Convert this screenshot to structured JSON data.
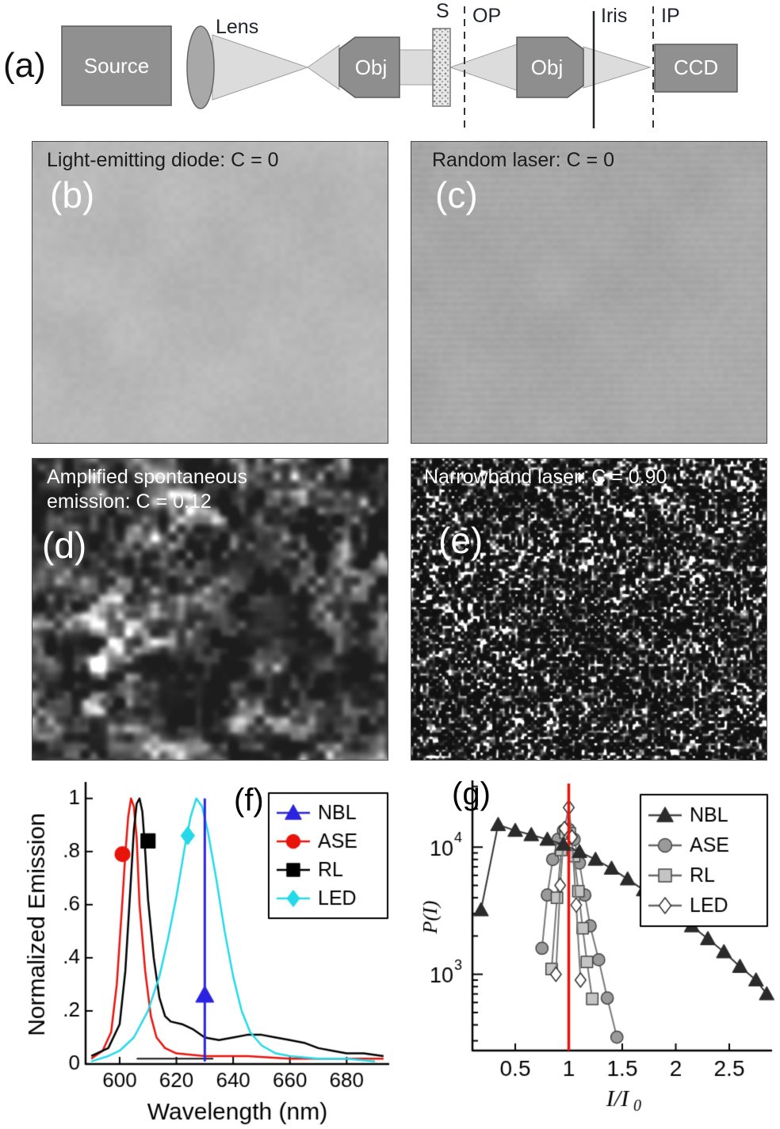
{
  "figure": {
    "panel_a": {
      "label": "(a)",
      "components": {
        "source": "Source",
        "lens": "Lens",
        "obj1": "Obj",
        "sample": "S",
        "op": "OP",
        "obj2": "Obj",
        "iris": "Iris",
        "ip": "IP",
        "ccd": "CCD"
      }
    },
    "panel_b": {
      "label": "(b)",
      "caption": "Light-emitting diode: C = 0"
    },
    "panel_c": {
      "label": "(c)",
      "caption": "Random laser: C = 0"
    },
    "panel_d": {
      "label": "(d)",
      "caption": "Amplified spontaneous emission: C = 0.12"
    },
    "panel_e": {
      "label": "(e)",
      "caption": "Narrowband laser: C = 0.90"
    },
    "panel_f": {
      "label": "(f)"
    },
    "panel_g": {
      "label": "(g)"
    }
  },
  "chart_data": [
    {
      "id": "f",
      "type": "line",
      "xlabel": "Wavelength (nm)",
      "ylabel": "Normalized Emission",
      "xlim": [
        588,
        695
      ],
      "ylim": [
        0,
        1.05
      ],
      "xticks": [
        600,
        620,
        640,
        660,
        680
      ],
      "yticks": [
        0,
        0.2,
        0.4,
        0.6,
        0.8,
        1
      ],
      "ytick_labels": [
        "0",
        ".2",
        ".4",
        ".6",
        ".8",
        "1"
      ],
      "legend": [
        {
          "name": "NBL",
          "marker": "triangle",
          "color": "#2a24e0"
        },
        {
          "name": "ASE",
          "marker": "circle",
          "color": "#e8140c"
        },
        {
          "name": "RL",
          "marker": "square",
          "color": "#000000"
        },
        {
          "name": "LED",
          "marker": "diamond",
          "color": "#25d9e9"
        }
      ],
      "baseline_segment": {
        "x1": 606,
        "x2": 633,
        "y": 0.02
      },
      "series": [
        {
          "name": "ASE",
          "color": "#e8140c",
          "width": 2.5,
          "points": [
            [
              590,
              0.02
            ],
            [
              594,
              0.05
            ],
            [
              597,
              0.12
            ],
            [
              599,
              0.3
            ],
            [
              601,
              0.62
            ],
            [
              602,
              0.79
            ],
            [
              603,
              0.93
            ],
            [
              604,
              1.0
            ],
            [
              605,
              0.97
            ],
            [
              606,
              0.85
            ],
            [
              607,
              0.6
            ],
            [
              609,
              0.35
            ],
            [
              611,
              0.18
            ],
            [
              613,
              0.1
            ],
            [
              616,
              0.06
            ],
            [
              620,
              0.04
            ],
            [
              630,
              0.03
            ],
            [
              645,
              0.03
            ],
            [
              660,
              0.02
            ],
            [
              680,
              0.02
            ],
            [
              693,
              0.02
            ]
          ],
          "marker": {
            "x": 601,
            "y": 0.79,
            "shape": "circle"
          }
        },
        {
          "name": "RL",
          "color": "#000000",
          "width": 2.5,
          "points": [
            [
              590,
              0.03
            ],
            [
              596,
              0.06
            ],
            [
              600,
              0.15
            ],
            [
              602,
              0.35
            ],
            [
              604,
              0.7
            ],
            [
              605,
              0.88
            ],
            [
              606,
              0.98
            ],
            [
              607,
              1.0
            ],
            [
              608,
              0.95
            ],
            [
              609,
              0.8
            ],
            [
              610,
              0.62
            ],
            [
              612,
              0.4
            ],
            [
              614,
              0.25
            ],
            [
              616,
              0.18
            ],
            [
              618,
              0.16
            ],
            [
              622,
              0.15
            ],
            [
              626,
              0.13
            ],
            [
              630,
              0.1
            ],
            [
              635,
              0.09
            ],
            [
              640,
              0.1
            ],
            [
              645,
              0.11
            ],
            [
              650,
              0.11
            ],
            [
              655,
              0.1
            ],
            [
              660,
              0.09
            ],
            [
              665,
              0.08
            ],
            [
              670,
              0.06
            ],
            [
              675,
              0.05
            ],
            [
              680,
              0.04
            ],
            [
              686,
              0.04
            ],
            [
              693,
              0.03
            ]
          ],
          "marker": {
            "x": 610,
            "y": 0.84,
            "shape": "square"
          }
        },
        {
          "name": "LED",
          "color": "#25d9e9",
          "width": 2.5,
          "points": [
            [
              590,
              0.01
            ],
            [
              596,
              0.03
            ],
            [
              600,
              0.05
            ],
            [
              605,
              0.1
            ],
            [
              610,
              0.2
            ],
            [
              614,
              0.33
            ],
            [
              617,
              0.47
            ],
            [
              620,
              0.63
            ],
            [
              623,
              0.82
            ],
            [
              625,
              0.93
            ],
            [
              627,
              1.0
            ],
            [
              629,
              0.97
            ],
            [
              631,
              0.88
            ],
            [
              634,
              0.7
            ],
            [
              637,
              0.5
            ],
            [
              640,
              0.33
            ],
            [
              643,
              0.2
            ],
            [
              646,
              0.12
            ],
            [
              650,
              0.07
            ],
            [
              655,
              0.04
            ],
            [
              660,
              0.03
            ],
            [
              670,
              0.02
            ],
            [
              680,
              0.02
            ],
            [
              690,
              0.01
            ]
          ],
          "marker": {
            "x": 624,
            "y": 0.86,
            "shape": "diamond"
          }
        },
        {
          "name": "NBL",
          "color": "#2a24e0",
          "width": 3,
          "points": [
            [
              630,
              0.01
            ],
            [
              630,
              1.0
            ]
          ],
          "marker": {
            "x": 630,
            "y": 0.26,
            "shape": "triangle"
          }
        }
      ]
    },
    {
      "id": "g",
      "type": "line",
      "xlabel": "I/I0",
      "xlabel_main": "I/I",
      "xlabel_sub": "0",
      "ylabel": "P(I)",
      "xlim": [
        0.1,
        2.9
      ],
      "xticks": [
        0.5,
        1,
        1.5,
        2,
        2.5
      ],
      "ylog": true,
      "ylim_log": [
        2.4,
        4.5
      ],
      "yticks_log": [
        3,
        4
      ],
      "vline": {
        "x": 1,
        "color": "#e8140c"
      },
      "legend": [
        {
          "name": "NBL",
          "marker": "triangle",
          "fill": "#2b2b2b",
          "stroke": "#2b2b2b",
          "line": "#444444"
        },
        {
          "name": "ASE",
          "marker": "circle",
          "fill": "#9a9a9a",
          "stroke": "#444444",
          "line": "#666666"
        },
        {
          "name": "RL",
          "marker": "square",
          "fill": "#c4c4c4",
          "stroke": "#444444",
          "line": "#666666"
        },
        {
          "name": "LED",
          "marker": "diamond",
          "fill": "#ffffff",
          "stroke": "#333333",
          "line": "#666666"
        }
      ],
      "series": [
        {
          "name": "ASE",
          "marker": "circle",
          "line": "#777777",
          "fill": "#9a9a9a",
          "stroke": "#444444",
          "points": [
            [
              0.75,
              1600
            ],
            [
              0.8,
              4200
            ],
            [
              0.85,
              8000
            ],
            [
              0.9,
              11500
            ],
            [
              0.95,
              13500
            ],
            [
              1.0,
              13800
            ],
            [
              1.05,
              11500
            ],
            [
              1.1,
              7500
            ],
            [
              1.15,
              4200
            ],
            [
              1.2,
              2400
            ],
            [
              1.28,
              1300
            ],
            [
              1.36,
              650
            ],
            [
              1.45,
              320
            ]
          ]
        },
        {
          "name": "RL",
          "marker": "square",
          "line": "#777777",
          "fill": "#c4c4c4",
          "stroke": "#444444",
          "points": [
            [
              0.84,
              1100
            ],
            [
              0.89,
              4000
            ],
            [
              0.93,
              9500
            ],
            [
              0.97,
              13000
            ],
            [
              1.01,
              12800
            ],
            [
              1.05,
              8500
            ],
            [
              1.09,
              4500
            ],
            [
              1.13,
              2300
            ],
            [
              1.17,
              1250
            ],
            [
              1.22,
              640
            ]
          ]
        },
        {
          "name": "LED",
          "marker": "diamond",
          "line": "#777777",
          "fill": "#ffffff",
          "stroke": "#333333",
          "points": [
            [
              0.88,
              1000
            ],
            [
              0.92,
              5000
            ],
            [
              0.96,
              14000
            ],
            [
              1.0,
              20500
            ],
            [
              1.03,
              12000
            ],
            [
              1.07,
              3500
            ],
            [
              1.11,
              900
            ]
          ]
        },
        {
          "name": "NBL",
          "marker": "triangle",
          "line": "#333333",
          "fill": "#2b2b2b",
          "stroke": "#2b2b2b",
          "points": [
            [
              0.18,
              3200
            ],
            [
              0.34,
              15000
            ],
            [
              0.5,
              13500
            ],
            [
              0.65,
              12500
            ],
            [
              0.8,
              11500
            ],
            [
              0.95,
              10500
            ],
            [
              1.1,
              9200
            ],
            [
              1.25,
              8000
            ],
            [
              1.4,
              6800
            ],
            [
              1.55,
              5600
            ],
            [
              1.7,
              4600
            ],
            [
              1.85,
              3700
            ],
            [
              2.0,
              3000
            ],
            [
              2.15,
              2400
            ],
            [
              2.3,
              1900
            ],
            [
              2.45,
              1500
            ],
            [
              2.6,
              1150
            ],
            [
              2.75,
              900
            ],
            [
              2.85,
              700
            ]
          ]
        }
      ]
    }
  ]
}
